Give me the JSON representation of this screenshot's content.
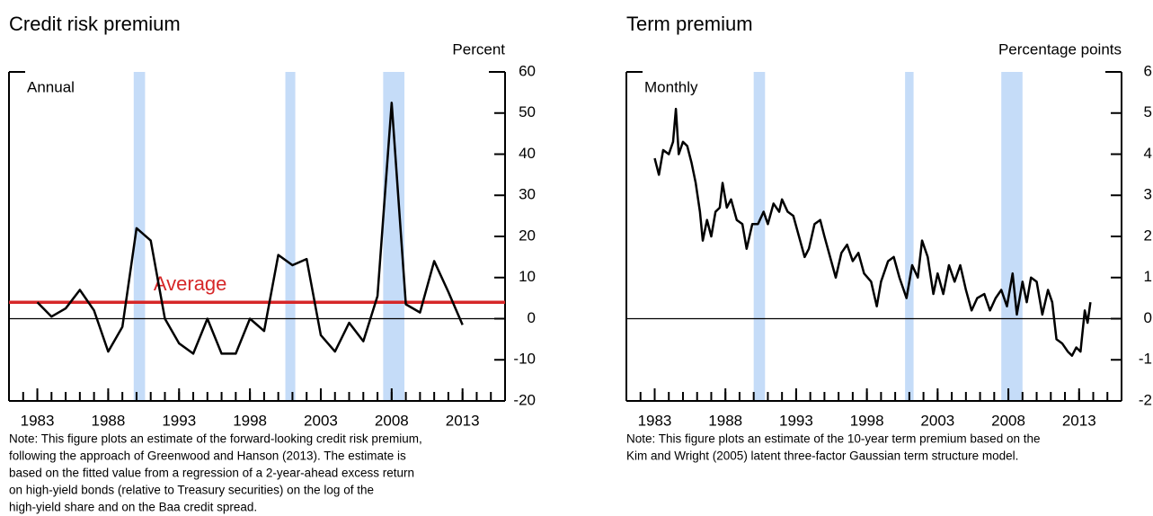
{
  "chart_data": [
    {
      "type": "line",
      "title": "Credit risk premium",
      "y_label": "Percent",
      "annotation": "Annual",
      "x": [
        1983,
        1984,
        1985,
        1986,
        1987,
        1988,
        1989,
        1990,
        1991,
        1992,
        1993,
        1994,
        1995,
        1996,
        1997,
        1998,
        1999,
        2000,
        2001,
        2002,
        2003,
        2004,
        2005,
        2006,
        2007,
        2008,
        2009,
        2010,
        2011,
        2012,
        2013
      ],
      "values": [
        4,
        0.5,
        2.5,
        7,
        2,
        -8,
        -2,
        22,
        19,
        0,
        -6,
        -8.5,
        0,
        -8.5,
        -8.5,
        0,
        -3,
        15.5,
        13,
        14.5,
        -4,
        -8,
        -1,
        -5.5,
        5.5,
        52.5,
        3.5,
        1.5,
        14,
        6.5,
        -1.5
      ],
      "color": "#000000",
      "reference_line": {
        "label": "Average",
        "value": 4,
        "color": "#d62728"
      },
      "shaded_periods": [
        [
          1989.8,
          1990.6
        ],
        [
          2000.5,
          2001.2
        ],
        [
          2007.4,
          2008.9
        ]
      ],
      "shade_color": "#c5dcf8",
      "xlim": [
        1981,
        2016
      ],
      "xticks": [
        1983,
        1988,
        1993,
        1998,
        2003,
        2008,
        2013
      ],
      "ylim": [
        -20,
        60
      ],
      "yticks": [
        -20,
        -10,
        0,
        10,
        20,
        30,
        40,
        50,
        60
      ],
      "zero_line": true,
      "note": [
        "Note: This figure plots an estimate of the forward-looking credit risk premium,",
        "following the approach of Greenwood and Hanson (2013). The estimate is",
        "based on the fitted value from a regression of a 2-year-ahead excess return",
        "on high-yield bonds (relative to Treasury securities) on the log of the",
        "high-yield share and on the Baa credit spread."
      ]
    },
    {
      "type": "line",
      "title": "Term premium",
      "y_label": "Percentage points",
      "annotation": "Monthly",
      "x": [
        1983.0,
        1983.3,
        1983.6,
        1984.0,
        1984.3,
        1984.5,
        1984.7,
        1985.0,
        1985.3,
        1985.6,
        1985.9,
        1986.2,
        1986.4,
        1986.7,
        1987.0,
        1987.3,
        1987.6,
        1987.8,
        1988.1,
        1988.4,
        1988.8,
        1989.2,
        1989.5,
        1989.9,
        1990.3,
        1990.7,
        1991.0,
        1991.4,
        1991.8,
        1992.0,
        1992.4,
        1992.8,
        1993.2,
        1993.6,
        1993.9,
        1994.3,
        1994.7,
        1995.0,
        1995.4,
        1995.8,
        1996.2,
        1996.6,
        1997.0,
        1997.4,
        1997.8,
        1998.3,
        1998.7,
        1999.0,
        1999.5,
        1999.9,
        2000.3,
        2000.8,
        2001.2,
        2001.6,
        2001.9,
        2002.3,
        2002.7,
        2003.0,
        2003.4,
        2003.8,
        2004.2,
        2004.6,
        2005.0,
        2005.4,
        2005.8,
        2006.3,
        2006.7,
        2007.1,
        2007.5,
        2007.9,
        2008.3,
        2008.6,
        2009.0,
        2009.3,
        2009.6,
        2010.0,
        2010.4,
        2010.8,
        2011.1,
        2011.4,
        2011.8,
        2012.2,
        2012.5,
        2012.8,
        2013.1,
        2013.4,
        2013.6,
        2013.8
      ],
      "values": [
        3.9,
        3.5,
        4.1,
        4.0,
        4.3,
        5.1,
        4.0,
        4.3,
        4.2,
        3.8,
        3.3,
        2.6,
        1.9,
        2.4,
        2.0,
        2.6,
        2.7,
        3.3,
        2.7,
        2.9,
        2.4,
        2.3,
        1.7,
        2.3,
        2.3,
        2.6,
        2.3,
        2.8,
        2.6,
        2.9,
        2.6,
        2.5,
        2.0,
        1.5,
        1.7,
        2.3,
        2.4,
        2.0,
        1.5,
        1.0,
        1.6,
        1.8,
        1.4,
        1.6,
        1.1,
        0.9,
        0.3,
        0.9,
        1.4,
        1.5,
        1.0,
        0.5,
        1.3,
        1.0,
        1.9,
        1.5,
        0.6,
        1.1,
        0.6,
        1.3,
        0.9,
        1.3,
        0.7,
        0.2,
        0.5,
        0.6,
        0.2,
        0.5,
        0.7,
        0.3,
        1.1,
        0.1,
        0.9,
        0.4,
        1.0,
        0.9,
        0.1,
        0.7,
        0.4,
        -0.5,
        -0.6,
        -0.8,
        -0.9,
        -0.7,
        -0.8,
        0.2,
        -0.1,
        0.4
      ],
      "color": "#000000",
      "shaded_periods": [
        [
          1990.0,
          1990.8
        ],
        [
          2000.7,
          2001.3
        ],
        [
          2007.5,
          2009.0
        ]
      ],
      "shade_color": "#c5dcf8",
      "xlim": [
        1981,
        2016
      ],
      "xticks": [
        1983,
        1988,
        1993,
        1998,
        2003,
        2008,
        2013
      ],
      "ylim": [
        -2,
        6
      ],
      "yticks": [
        -2,
        -1,
        0,
        1,
        2,
        3,
        4,
        5,
        6
      ],
      "zero_line": true,
      "note": [
        "Note: This figure plots an estimate of the 10-year term premium based on the",
        "Kim and Wright (2005) latent three-factor Gaussian term structure model."
      ]
    }
  ]
}
